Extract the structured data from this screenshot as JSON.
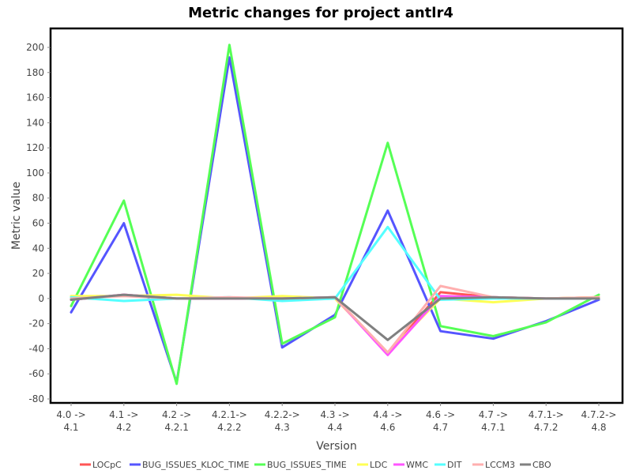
{
  "chart_data": {
    "type": "line",
    "title": "Metric changes for project antlr4",
    "xlabel": "Version",
    "ylabel": "Metric value",
    "ylim": [
      -80,
      215
    ],
    "yticks": [
      -80,
      -60,
      -40,
      -20,
      0,
      20,
      40,
      60,
      80,
      100,
      120,
      140,
      160,
      180,
      200
    ],
    "grid": false,
    "legend_position": "bottom",
    "categories": [
      [
        "4.0 ->",
        "4.1"
      ],
      [
        "4.1 ->",
        "4.2"
      ],
      [
        "4.2 ->",
        "4.2.1"
      ],
      [
        "4.2.1->",
        "4.2.2"
      ],
      [
        "4.2.2->",
        "4.3"
      ],
      [
        "4.3 ->",
        "4.4"
      ],
      [
        "4.4 ->",
        "4.6"
      ],
      [
        "4.6 ->",
        "4.7"
      ],
      [
        "4.7 ->",
        "4.7.1"
      ],
      [
        "4.7.1->",
        "4.7.2"
      ],
      [
        "4.7.2->",
        "4.8"
      ]
    ],
    "series": [
      {
        "name": "LOCpC",
        "color": "#ff5555",
        "values": [
          -1,
          3,
          0,
          0,
          0,
          1,
          -44,
          5,
          1,
          0,
          1
        ]
      },
      {
        "name": "BUG_ISSUES_KLOC_TIME",
        "color": "#5555ff",
        "values": [
          -11,
          60,
          -67,
          192,
          -39,
          -13,
          70,
          -26,
          -32,
          -18,
          -1
        ]
      },
      {
        "name": "BUG_ISSUES_TIME",
        "color": "#55ff55",
        "values": [
          -6,
          78,
          -68,
          202,
          -36,
          -15,
          124,
          -22,
          -30,
          -19,
          3
        ]
      },
      {
        "name": "LDC",
        "color": "#ffff55",
        "values": [
          2,
          2,
          3,
          0,
          2,
          0,
          -43,
          0,
          -3,
          0,
          1
        ]
      },
      {
        "name": "WMC",
        "color": "#ff55ff",
        "values": [
          -1,
          3,
          0,
          0,
          0,
          1,
          -45,
          2,
          1,
          0,
          0
        ]
      },
      {
        "name": "DIT",
        "color": "#55ffff",
        "values": [
          1,
          -2,
          0,
          1,
          -2,
          0,
          57,
          -1,
          0,
          0,
          0
        ]
      },
      {
        "name": "LCCM3",
        "color": "#ffafaf",
        "values": [
          0,
          2,
          0,
          1,
          0,
          1,
          -43,
          10,
          1,
          0,
          1
        ]
      },
      {
        "name": "CBO",
        "color": "#808080",
        "values": [
          -1,
          3,
          0,
          0,
          0,
          1,
          -33,
          0,
          1,
          0,
          0
        ]
      }
    ]
  }
}
